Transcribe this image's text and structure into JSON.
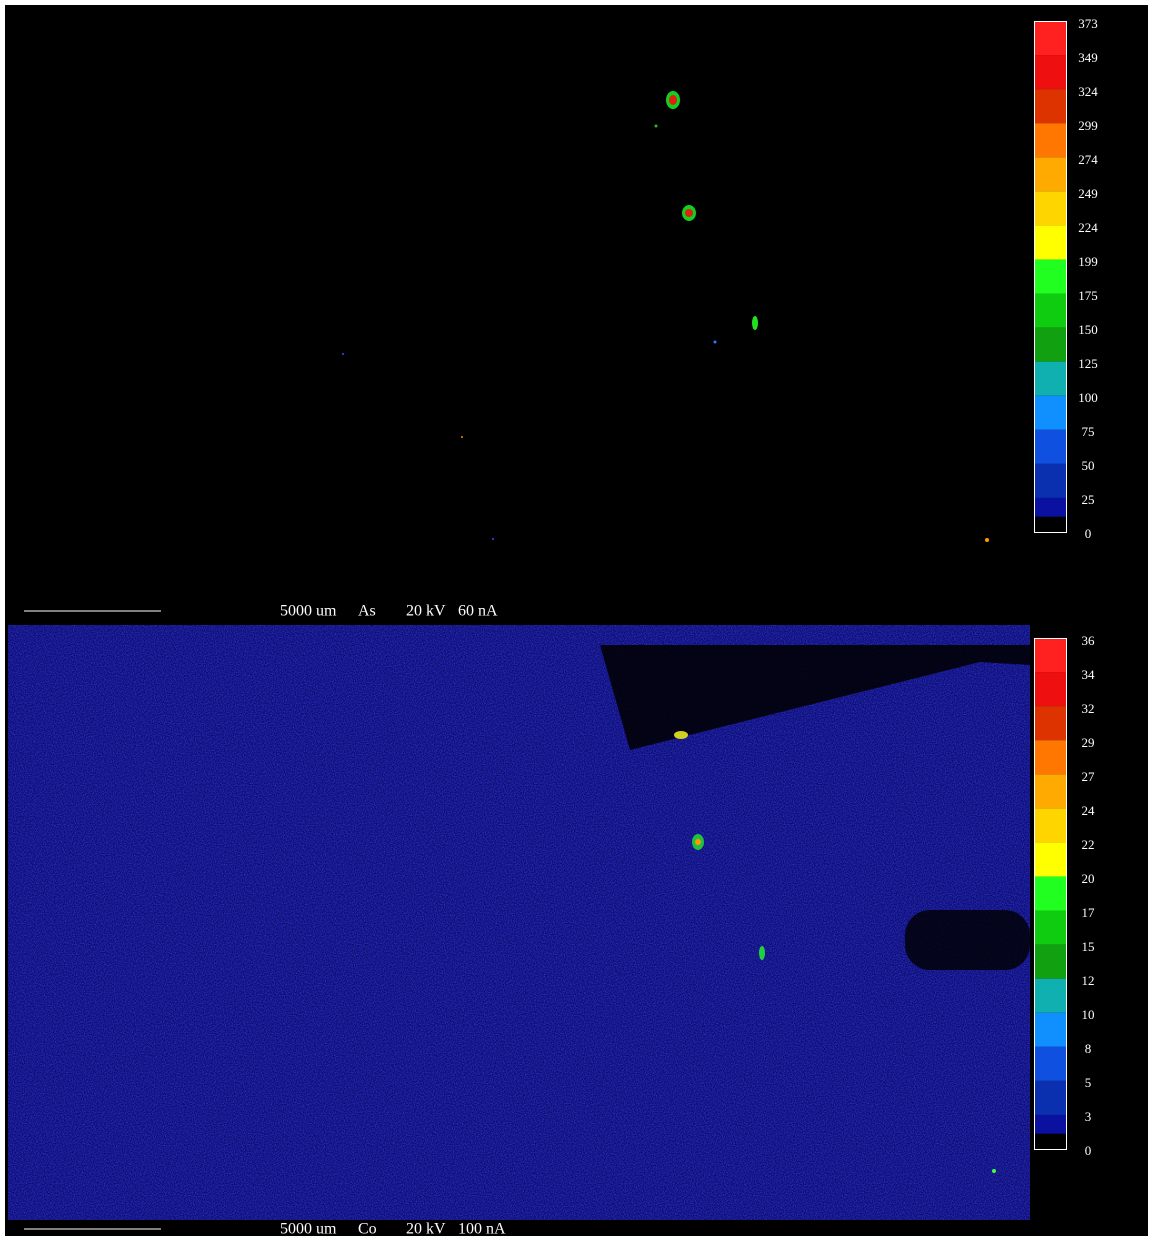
{
  "panels": [
    {
      "scale": [
        "373",
        "349",
        "324",
        "299",
        "274",
        "249",
        "224",
        "199",
        "175",
        "150",
        "125",
        "100",
        "75",
        "50",
        "25",
        "0"
      ],
      "caption": {
        "length": "5000 um",
        "element": "As",
        "voltage": "20 kV",
        "current": "60 nA"
      }
    },
    {
      "scale": [
        "36",
        "34",
        "32",
        "29",
        "27",
        "24",
        "22",
        "20",
        "17",
        "15",
        "12",
        "10",
        "8",
        "5",
        "3",
        "0"
      ],
      "caption": {
        "length": "5000 um",
        "element": "Co",
        "voltage": "20 kV",
        "current": "100 nA"
      }
    }
  ]
}
